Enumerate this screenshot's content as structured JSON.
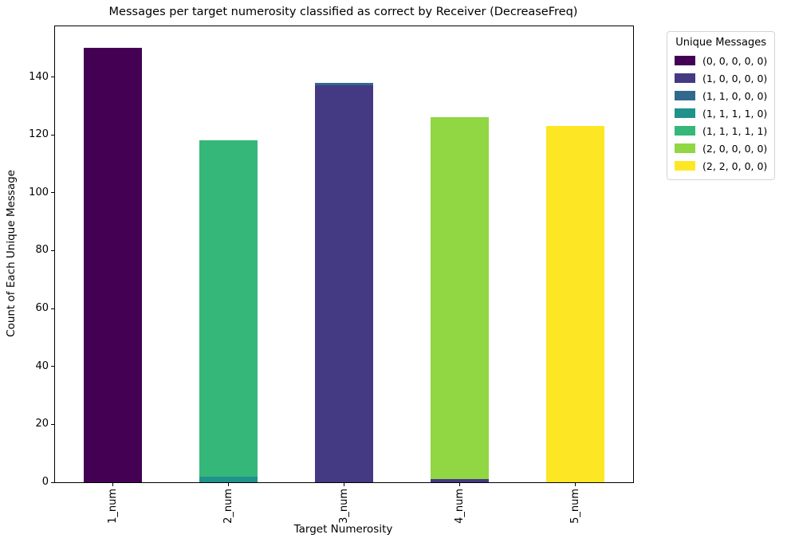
{
  "chart_data": {
    "type": "bar",
    "stacked": true,
    "title": "Messages per target numerosity classified as correct by Receiver (DecreaseFreq)",
    "xlabel": "Target Numerosity",
    "ylabel": "Count of Each Unique Message",
    "categories": [
      "1_num",
      "2_num",
      "3_num",
      "4_num",
      "5_num"
    ],
    "yticks": [
      0,
      20,
      40,
      60,
      80,
      100,
      120,
      140
    ],
    "ylim": [
      0,
      157.5
    ],
    "grid": false,
    "bar_width_fraction": 0.5,
    "legend": {
      "title": "Unique Messages",
      "position": "outside-upper-right"
    },
    "series": [
      {
        "name": "(0, 0, 0, 0, 0)",
        "color": "#440154",
        "values": [
          150,
          0,
          0,
          0,
          0
        ]
      },
      {
        "name": "(1, 0, 0, 0, 0)",
        "color": "#443983",
        "values": [
          0,
          0,
          137,
          1,
          0
        ]
      },
      {
        "name": "(1, 1, 0, 0, 0)",
        "color": "#31688e",
        "values": [
          0,
          0,
          1,
          0,
          0
        ]
      },
      {
        "name": "(1, 1, 1, 1, 0)",
        "color": "#21918c",
        "values": [
          0,
          2,
          0,
          0,
          0
        ]
      },
      {
        "name": "(1, 1, 1, 1, 1)",
        "color": "#35b779",
        "values": [
          0,
          116,
          0,
          0,
          0
        ]
      },
      {
        "name": "(2, 0, 0, 0, 0)",
        "color": "#90d743",
        "values": [
          0,
          0,
          0,
          125,
          0
        ]
      },
      {
        "name": "(2, 2, 0, 0, 0)",
        "color": "#fde725",
        "values": [
          0,
          0,
          0,
          0,
          123
        ]
      }
    ],
    "totals_per_category": [
      150,
      118,
      138,
      126,
      123
    ]
  }
}
